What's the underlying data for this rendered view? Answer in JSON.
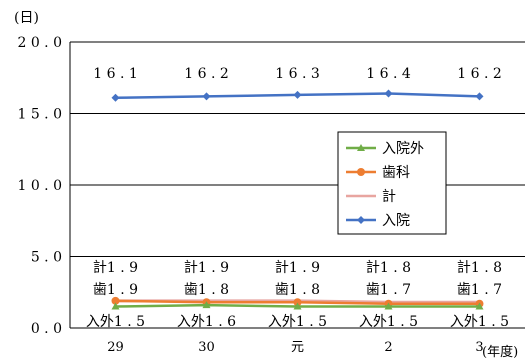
{
  "chart_data": {
    "type": "line",
    "ylabel": "(日)",
    "xlabel": "(年度)",
    "categories": [
      "29",
      "30",
      "元",
      "2",
      "3"
    ],
    "ylim": [
      0,
      20
    ],
    "yticks": [
      "0.0",
      "5.0",
      "10.0",
      "15.0",
      "20.0"
    ],
    "grid": true,
    "legend_position": "right-middle",
    "series": [
      {
        "name": "入院",
        "color": "#4472c4",
        "marker": "diamond",
        "values": [
          16.1,
          16.2,
          16.3,
          16.4,
          16.2
        ],
        "labels": [
          "16.1",
          "16.2",
          "16.3",
          "16.4",
          "16.2"
        ],
        "label_prefix": ""
      },
      {
        "name": "計",
        "color": "#e8a5a0",
        "marker": "none",
        "values": [
          1.9,
          1.9,
          1.9,
          1.8,
          1.8
        ],
        "labels": [
          "1.9",
          "1.9",
          "1.9",
          "1.8",
          "1.8"
        ],
        "label_prefix": "計"
      },
      {
        "name": "歯科",
        "color": "#ed7d31",
        "marker": "circle",
        "values": [
          1.9,
          1.8,
          1.8,
          1.7,
          1.7
        ],
        "labels": [
          "1.9",
          "1.8",
          "1.8",
          "1.7",
          "1.7"
        ],
        "label_prefix": "歯"
      },
      {
        "name": "入院外",
        "color": "#70ad47",
        "marker": "triangle",
        "values": [
          1.5,
          1.6,
          1.5,
          1.5,
          1.5
        ],
        "labels": [
          "1.5",
          "1.6",
          "1.5",
          "1.5",
          "1.5"
        ],
        "label_prefix": "入外"
      }
    ],
    "legend_order": [
      "入院外",
      "歯科",
      "計",
      "入院"
    ]
  }
}
